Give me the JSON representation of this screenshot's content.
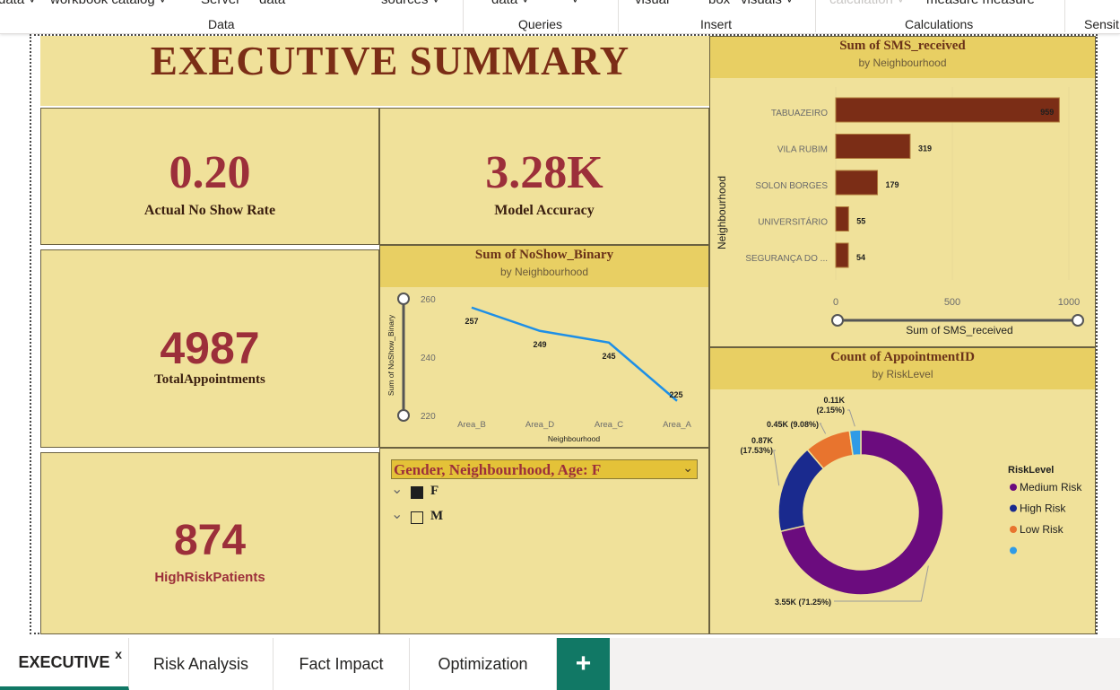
{
  "ribbon": {
    "top_labels": [
      "data ˅",
      "workbook catalog ˅",
      "Server",
      "data",
      "sources ˅",
      "data ˅",
      "˅",
      "visual",
      "box",
      "visuals ˅",
      "calculation ˅",
      "measure measure"
    ],
    "groups": [
      "Data",
      "Queries",
      "Insert",
      "Calculations",
      "Sensit"
    ]
  },
  "report": {
    "title": "EXECUTIVE SUMMARY",
    "kpis": [
      {
        "value": "0.20",
        "label": "Actual No Show Rate"
      },
      {
        "value": "3.28K",
        "label": "Model Accuracy"
      },
      {
        "value": "4987",
        "label": "TotalAppointments"
      },
      {
        "value": "874",
        "label": "HighRiskPatients"
      }
    ],
    "sms_chart": {
      "title": "Sum of SMS_received",
      "subtitle": "by Neighbourhood"
    },
    "noshow_chart": {
      "title": "Sum of NoShow_Binary",
      "subtitle": "by Neighbourhood"
    },
    "donut_chart": {
      "title": "Count of AppointmentID",
      "subtitle": "by RiskLevel"
    },
    "slicer": {
      "header": "Gender, Neighbourhood, Age: F",
      "items": [
        {
          "label": "F",
          "checked": true
        },
        {
          "label": "M",
          "checked": false
        }
      ]
    }
  },
  "chart_data": [
    {
      "type": "bar",
      "orientation": "horizontal",
      "title": "Sum of SMS_received",
      "subtitle": "by Neighbourhood",
      "categories": [
        "TABUAZEIRO",
        "VILA RUBIM",
        "SOLON BORGES",
        "UNIVERSITÁRIO",
        "SEGURANÇA DO ..."
      ],
      "values": [
        959,
        319,
        179,
        55,
        54
      ],
      "xlabel": "Sum of SMS_received",
      "ylabel": "Neighbourhood",
      "xticks": [
        "0",
        "500",
        "1000"
      ],
      "xlim": [
        0,
        1000
      ],
      "color": "#7b2d16"
    },
    {
      "type": "line",
      "title": "Sum of NoShow_Binary",
      "subtitle": "by Neighbourhood",
      "categories": [
        "Area_B",
        "Area_D",
        "Area_C",
        "Area_A"
      ],
      "values": [
        257,
        249,
        245,
        225
      ],
      "xlabel": "Neighbourhood",
      "ylabel": "Sum of NoShow_Binary",
      "yticks": [
        "220",
        "240",
        "260"
      ],
      "ylim": [
        220,
        260
      ],
      "color": "#1e8fe6"
    },
    {
      "type": "pie",
      "variant": "donut",
      "title": "Count of AppointmentID",
      "subtitle": "by RiskLevel",
      "legend_title": "RiskLevel",
      "legend_position": "right",
      "slices": [
        {
          "name": "Medium Risk",
          "value": 3550,
          "label": "3.55K (71.25%)",
          "color": "#6b0c7e"
        },
        {
          "name": "High Risk",
          "value": 870,
          "label": "0.87K (17.53%)",
          "color": "#1a2a8e"
        },
        {
          "name": "Low Risk",
          "value": 450,
          "label": "0.45K (9.08%)",
          "color": "#e8742e"
        },
        {
          "name": "",
          "value": 110,
          "label": "0.11K (2.15%)",
          "color": "#2f9be6"
        }
      ]
    }
  ],
  "tabs": [
    {
      "label": "EXECUTIVE",
      "active": true,
      "close": "x"
    },
    {
      "label": "Risk Analysis"
    },
    {
      "label": "Fact Impact"
    },
    {
      "label": "Optimization"
    }
  ],
  "add_tab": "+"
}
